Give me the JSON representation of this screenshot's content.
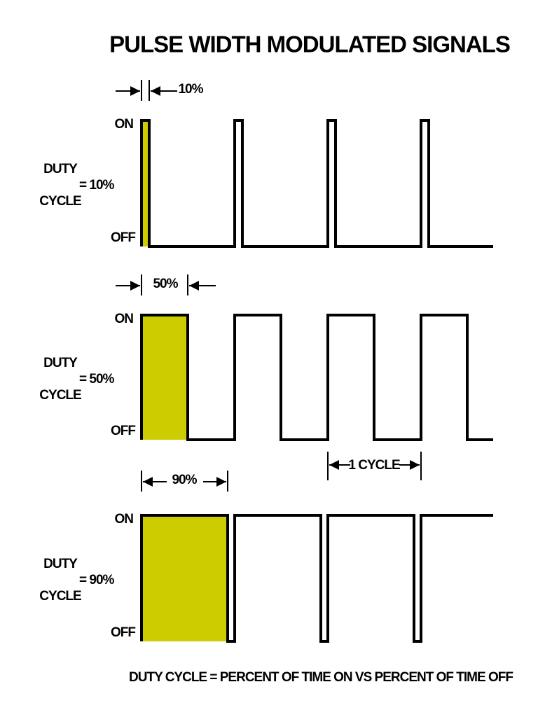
{
  "title": "PULSE WIDTH MODULATED SIGNALS",
  "panels": [
    {
      "width_label": "10%",
      "on_label": "ON",
      "off_label": "OFF",
      "duty_word": "DUTY",
      "cycle_word": "CYCLE",
      "duty_value": "= 10%"
    },
    {
      "width_label": "50%",
      "on_label": "ON",
      "off_label": "OFF",
      "duty_word": "DUTY",
      "cycle_word": "CYCLE",
      "duty_value": "= 50%"
    },
    {
      "width_label": "90%",
      "on_label": "ON",
      "off_label": "OFF",
      "duty_word": "DUTY",
      "cycle_word": "CYCLE",
      "duty_value": "= 90%"
    }
  ],
  "cycle_label": "1 CYCLE",
  "footer": "DUTY CYCLE = PERCENT OF TIME ON VS PERCENT OF TIME OFF"
}
